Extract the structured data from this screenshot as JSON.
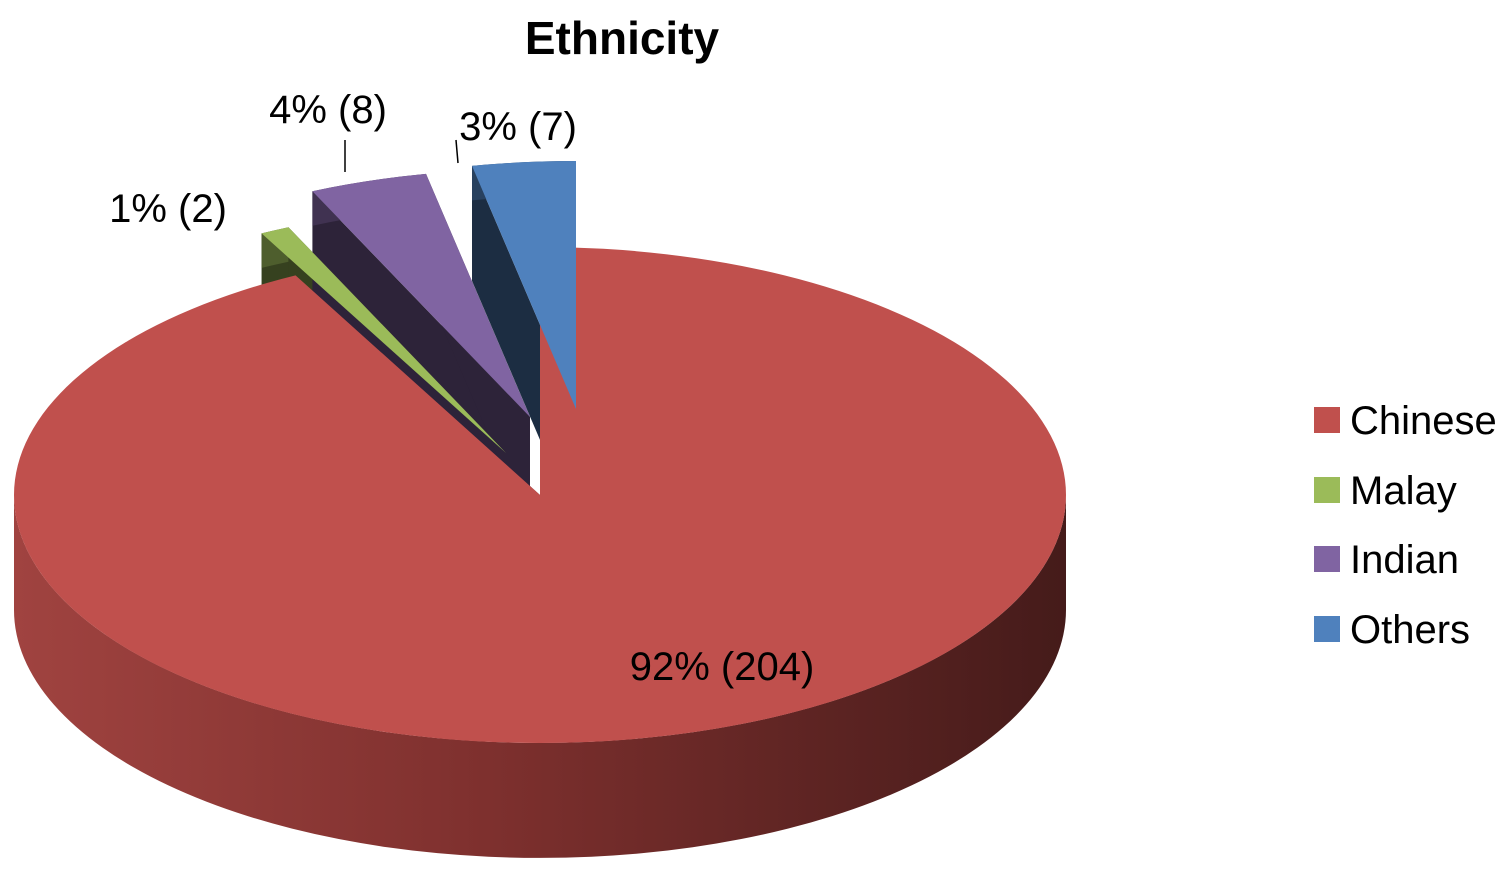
{
  "chart_data": {
    "type": "pie",
    "title": "Ethnicity",
    "categories": [
      "Chinese",
      "Malay",
      "Indian",
      "Others"
    ],
    "values": [
      204,
      2,
      8,
      7
    ],
    "percent_labels": [
      "92%",
      "1%",
      "4%",
      "3%"
    ],
    "data_labels": [
      "92% (204)",
      "1% (2)",
      "4% (8)",
      "3% (7)"
    ],
    "colors": [
      "#c0504d",
      "#9bbb59",
      "#8064a2",
      "#4f81bd"
    ],
    "three_d": true,
    "exploded": [
      "Malay",
      "Indian",
      "Others"
    ],
    "legend_position": "right"
  }
}
